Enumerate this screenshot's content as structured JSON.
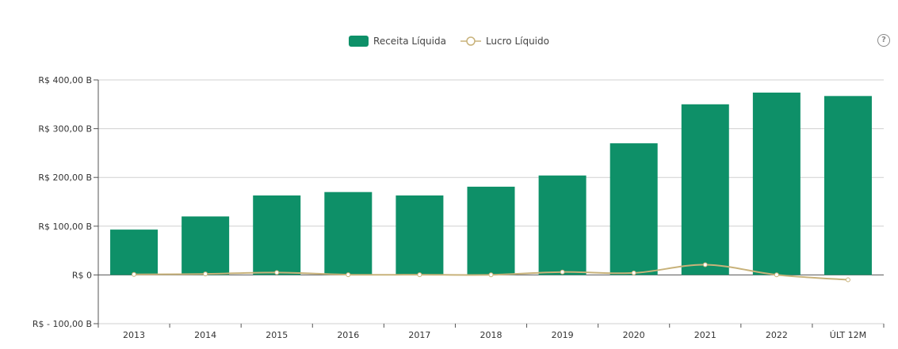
{
  "help_label": "?",
  "chart_data": {
    "type": "bar",
    "categories": [
      "2013",
      "2014",
      "2015",
      "2016",
      "2017",
      "2018",
      "2019",
      "2020",
      "2021",
      "2022",
      "ÚLT 12M"
    ],
    "series": [
      {
        "name": "Receita Líquida",
        "type": "bar",
        "color": "#0e9068",
        "values": [
          93,
          120,
          163,
          170,
          163,
          181,
          204,
          270,
          350,
          374,
          367
        ]
      },
      {
        "name": "Lucro Líquido",
        "type": "line",
        "color": "#c8b27a",
        "values": [
          1,
          2,
          5,
          0.5,
          0.5,
          0.2,
          6,
          4,
          21,
          0.3,
          -10
        ]
      }
    ],
    "y_ticks": [
      {
        "value": 400,
        "label": "R$  400,00 B"
      },
      {
        "value": 300,
        "label": "R$  300,00 B"
      },
      {
        "value": 200,
        "label": "R$  200,00 B"
      },
      {
        "value": 100,
        "label": "R$  100,00 B"
      },
      {
        "value": 0,
        "label": "R$ 0"
      },
      {
        "value": -100,
        "label": "R$ - 100,00 B"
      }
    ],
    "ylim": [
      -100,
      400
    ],
    "grid": true,
    "legend_position": "top-center"
  }
}
